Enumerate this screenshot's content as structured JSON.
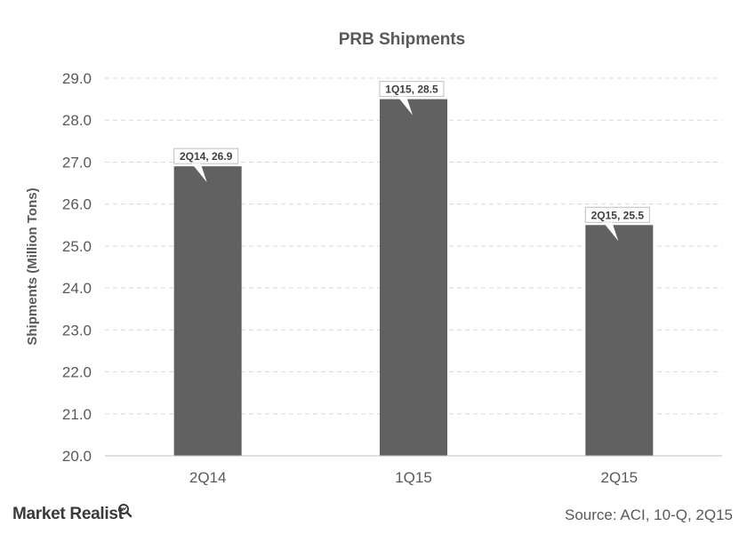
{
  "chart_data": {
    "type": "bar",
    "title": "PRB Shipments",
    "xlabel": "",
    "ylabel": "Shipments (Million Tons)",
    "categories": [
      "2Q14",
      "1Q15",
      "2Q15"
    ],
    "values": [
      26.9,
      28.5,
      25.5
    ],
    "data_labels": [
      "2Q14, 26.9",
      "1Q15, 28.5",
      "2Q15, 25.5"
    ],
    "ylim": [
      20.0,
      29.0
    ],
    "yticks": [
      "20.0",
      "21.0",
      "22.0",
      "23.0",
      "24.0",
      "25.0",
      "26.0",
      "27.0",
      "28.0",
      "29.0"
    ],
    "grid": true,
    "bar_color": "#616161"
  },
  "footer": {
    "brand": "Market Realist",
    "brand_icon": "magnifier-icon",
    "source": "Source: ACI, 10-Q, 2Q15"
  }
}
